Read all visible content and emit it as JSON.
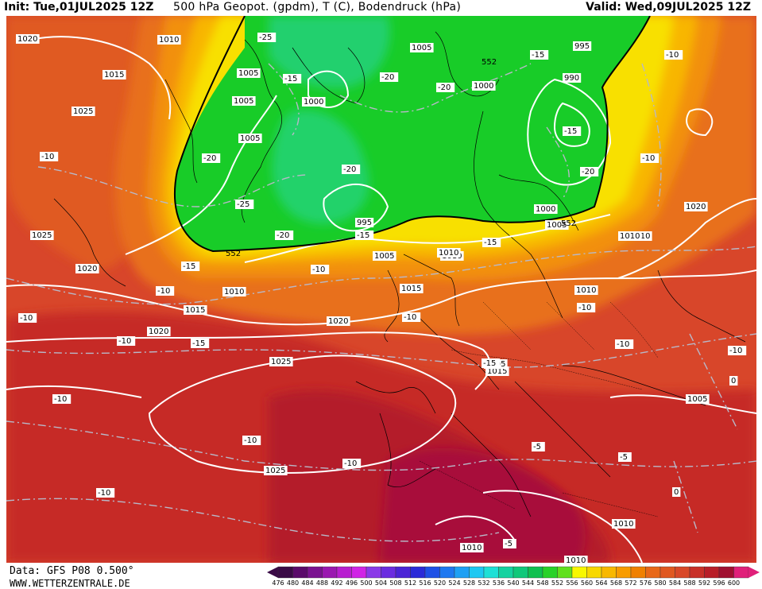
{
  "header": {
    "init": "Init: Tue,01JUL2025 12Z",
    "title": "500 hPa Geopot. (gpdm), T (C), Bodendruck (hPa)",
    "valid": "Valid: Wed,09JUL2025 12Z"
  },
  "footer": {
    "data_source": "Data: GFS P08 0.500°",
    "website": "WWW.WETTERZENTRALE.DE"
  },
  "colorbar": {
    "labels": [
      "476",
      "480",
      "484",
      "488",
      "492",
      "496",
      "500",
      "504",
      "508",
      "512",
      "516",
      "520",
      "524",
      "528",
      "532",
      "536",
      "540",
      "544",
      "548",
      "552",
      "556",
      "560",
      "564",
      "568",
      "572",
      "576",
      "580",
      "584",
      "588",
      "592",
      "596",
      "600"
    ],
    "colors": [
      "#3a0a46",
      "#5a0a6a",
      "#7a1290",
      "#9a18b0",
      "#b81ed0",
      "#d024e6",
      "#8a3ae8",
      "#6a2ce0",
      "#4a24d6",
      "#2a2ad8",
      "#1e50e6",
      "#1e78f0",
      "#1ea0f4",
      "#1ec8f2",
      "#1ee0d6",
      "#16d2a0",
      "#10c87a",
      "#10c050",
      "#28d228",
      "#60e01e",
      "#f8f800",
      "#f8d800",
      "#f8b800",
      "#f89c00",
      "#f08000",
      "#e86818",
      "#e05820",
      "#d84828",
      "#c83028",
      "#b81e28",
      "#a01030",
      "#e0207a"
    ]
  },
  "labels": {
    "pressure": [
      "1020",
      "1010",
      "1015",
      "1025",
      "1005",
      "1005",
      "1000",
      "1005",
      "1005",
      "1000",
      "995",
      "990",
      "995",
      "1000",
      "1005",
      "1010",
      "1005",
      "1010",
      "1025",
      "1020",
      "1010",
      "1015",
      "1020",
      "1020",
      "1015",
      "1010",
      "1015",
      "1005",
      "1025",
      "1020",
      "1010",
      "1010",
      "1010",
      "1005",
      "1025",
      "1010",
      "1010"
    ],
    "temperature": [
      "-25",
      "-15",
      "-25",
      "-20",
      "-20",
      "-20",
      "-15",
      "-10",
      "-20",
      "-20",
      "-25",
      "-15",
      "-15",
      "-20",
      "-15",
      "-10",
      "-15",
      "-10",
      "-10",
      "-10",
      "-10",
      "-15",
      "-10",
      "-10",
      "-10",
      "-10",
      "-10",
      "-10",
      "-5",
      "-10",
      "-15",
      "-5",
      "-10",
      "-5",
      "0",
      "0",
      "-10"
    ],
    "geopotential": [
      "552",
      "552",
      "552"
    ]
  },
  "map": {
    "fill_levels": [
      "#c62c28",
      "#d03c2a",
      "#e05a22",
      "#ea7218",
      "#f39010",
      "#f8b400",
      "#f8d800",
      "#f8f400",
      "#18cc28",
      "#28dc64",
      "#10c850"
    ]
  }
}
